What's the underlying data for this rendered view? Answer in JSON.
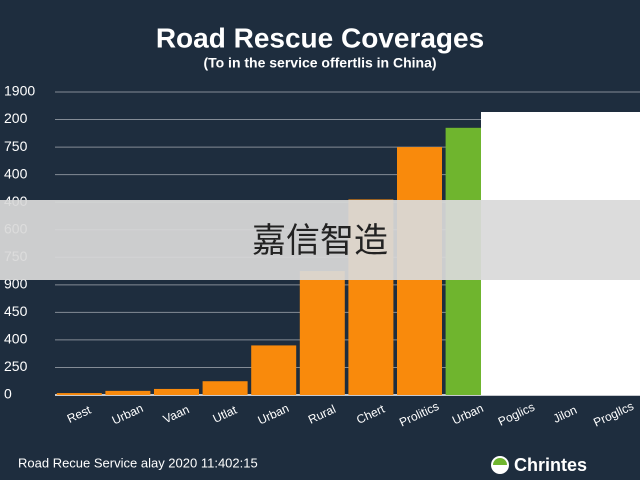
{
  "chart_data": {
    "type": "bar",
    "title": "Road Rescue Coverages",
    "subtitle": "(To in the service offertlis in China)",
    "categories": [
      "Rest",
      "Urban",
      "Vaan",
      "Utlat",
      "Urban",
      "Rural",
      "Chert",
      "Prolitics",
      "Urban",
      "Poglics",
      "Jilon",
      "Progllcs"
    ],
    "values": [
      0.07,
      0.15,
      0.22,
      0.5,
      1.8,
      4.5,
      7.1,
      9.0,
      9.7,
      null,
      null,
      null
    ],
    "colors": [
      "#f98a0c",
      "#f98a0c",
      "#f98a0c",
      "#f98a0c",
      "#f98a0c",
      "#f98a0c",
      "#f98a0c",
      "#f98a0c",
      "#6fb52e",
      "#ffffff",
      "#ffffff",
      "#ffffff"
    ],
    "ylim": [
      0,
      11
    ],
    "yticks": [
      {
        "value": 0,
        "label": "0"
      },
      {
        "value": 1,
        "label": "250"
      },
      {
        "value": 2,
        "label": "400"
      },
      {
        "value": 3,
        "label": "450"
      },
      {
        "value": 4,
        "label": "900"
      },
      {
        "value": 5,
        "label": "750"
      },
      {
        "value": 6,
        "label": "600"
      },
      {
        "value": 7,
        "label": "400"
      },
      {
        "value": 8,
        "label": "400"
      },
      {
        "value": 9,
        "label": "750"
      },
      {
        "value": 10,
        "label": "200"
      },
      {
        "value": 11,
        "label": "1900"
      }
    ],
    "grid": true,
    "watermark": "嘉信智造",
    "footer": "Road Recue Service alay 2020 11:402:15",
    "logo": "Chrintes"
  }
}
